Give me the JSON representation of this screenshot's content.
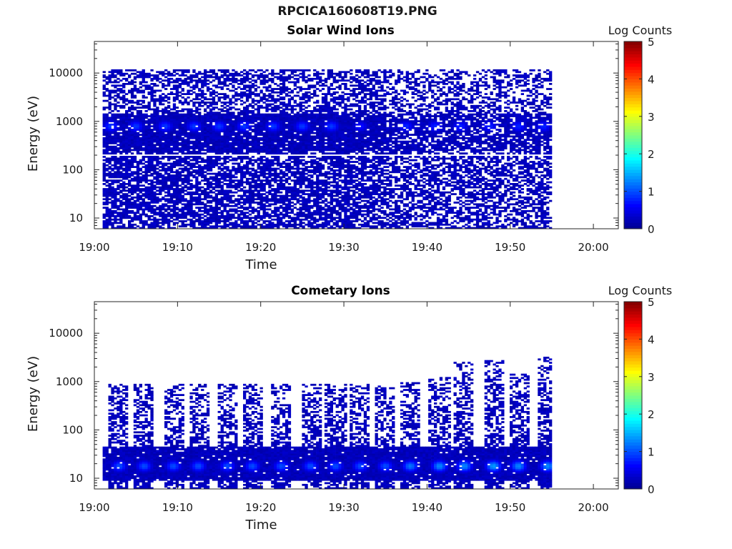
{
  "figure_title": "RPCICA160608T19.PNG",
  "colors": {
    "empty": "#ffffff",
    "low": "#00008f",
    "scale": [
      "#00008f",
      "#0000ff",
      "#007fff",
      "#00ffff",
      "#7fff7f",
      "#ffff00",
      "#ff7f00",
      "#ff0000",
      "#7f0000"
    ]
  },
  "chart_data": [
    {
      "type": "heatmap",
      "title": "Solar Wind Ions",
      "xlabel": "Time",
      "ylabel": "Energy (eV)",
      "x_ticks": [
        "19:00",
        "19:10",
        "19:20",
        "19:30",
        "19:40",
        "19:50",
        "20:00"
      ],
      "x_range": [
        "19:00",
        "20:03"
      ],
      "y_scale": "log",
      "y_ticks": [
        "10",
        "100",
        "1000",
        "10000"
      ],
      "y_range": [
        6,
        45000
      ],
      "data_time_range": [
        "19:01",
        "19:55"
      ],
      "colorbar": {
        "label": "Log Counts",
        "range": [
          0,
          5
        ],
        "ticks": [
          "0",
          "1",
          "2",
          "3",
          "4",
          "5"
        ]
      },
      "peaks": {
        "energy_eV": 800,
        "times": [
          "19:02",
          "19:05",
          "19:08.5",
          "19:12",
          "19:15",
          "19:18",
          "19:21.5",
          "19:25",
          "19:28.5",
          "19:32",
          "19:37.5",
          "19:41",
          "19:44",
          "19:47.5",
          "19:51",
          "19:54"
        ],
        "log_counts": [
          0.9,
          0.9,
          0.9,
          0.9,
          0.9,
          0.9,
          0.9,
          0.9,
          0.9,
          0.7,
          0.8,
          0.8,
          0.8,
          0.8,
          0.8,
          0.8
        ]
      },
      "band": {
        "min_eV": 6,
        "max_eV": 12000,
        "mostly_filled_below_eV": 250,
        "gap_at_eV": 200
      }
    },
    {
      "type": "heatmap",
      "title": "Cometary Ions",
      "xlabel": "Time",
      "ylabel": "Energy (eV)",
      "x_ticks": [
        "19:00",
        "19:10",
        "19:20",
        "19:30",
        "19:40",
        "19:50",
        "20:00"
      ],
      "x_range": [
        "19:00",
        "20:03"
      ],
      "y_scale": "log",
      "y_ticks": [
        "10",
        "100",
        "1000",
        "10000"
      ],
      "y_range": [
        6,
        45000
      ],
      "data_time_range": [
        "19:01",
        "19:55"
      ],
      "colorbar": {
        "label": "Log Counts",
        "range": [
          0,
          5
        ],
        "ticks": [
          "0",
          "1",
          "2",
          "3",
          "4",
          "5"
        ]
      },
      "peaks": {
        "energy_eV": 18,
        "times": [
          "19:03",
          "19:06",
          "19:09.5",
          "19:12.5",
          "19:16",
          "19:19",
          "19:22.5",
          "19:26",
          "19:29",
          "19:32",
          "19:35",
          "19:38",
          "19:41.5",
          "19:44.5",
          "19:48",
          "19:51",
          "19:54.5"
        ],
        "log_counts": [
          1.0,
          1.0,
          1.0,
          1.0,
          1.0,
          1.0,
          1.0,
          1.0,
          1.0,
          1.0,
          1.0,
          1.2,
          1.3,
          1.3,
          1.4,
          1.3,
          1.3
        ]
      },
      "column_top_eV": [
        900,
        900,
        900,
        900,
        900,
        900,
        900,
        900,
        900,
        900,
        800,
        1000,
        1200,
        2500,
        2800,
        1500,
        3200
      ]
    }
  ]
}
